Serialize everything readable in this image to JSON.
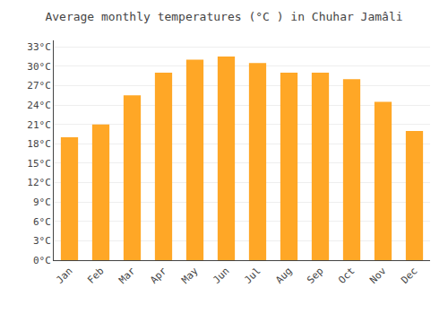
{
  "chart_data": {
    "type": "bar",
    "title": "Average monthly temperatures (°C ) in Chuhar Jamâli",
    "categories": [
      "Jan",
      "Feb",
      "Mar",
      "Apr",
      "May",
      "Jun",
      "Jul",
      "Aug",
      "Sep",
      "Oct",
      "Nov",
      "Dec"
    ],
    "values": [
      19.0,
      21.0,
      25.5,
      29.0,
      31.0,
      31.5,
      30.5,
      29.0,
      29.0,
      28.0,
      24.5,
      20.0
    ],
    "color": "#FFA726",
    "ylim": [
      0,
      34
    ],
    "yticks": [
      {
        "value": 0,
        "label": "0°C"
      },
      {
        "value": 3,
        "label": "3°C"
      },
      {
        "value": 6,
        "label": "6°C"
      },
      {
        "value": 9,
        "label": "9°C"
      },
      {
        "value": 12,
        "label": "12°C"
      },
      {
        "value": 15,
        "label": "15°C"
      },
      {
        "value": 18,
        "label": "18°C"
      },
      {
        "value": 21,
        "label": "21°C"
      },
      {
        "value": 24,
        "label": "24°C"
      },
      {
        "value": 27,
        "label": "27°C"
      },
      {
        "value": 30,
        "label": "30°C"
      },
      {
        "value": 33,
        "label": "33°C"
      }
    ],
    "grid": true
  }
}
